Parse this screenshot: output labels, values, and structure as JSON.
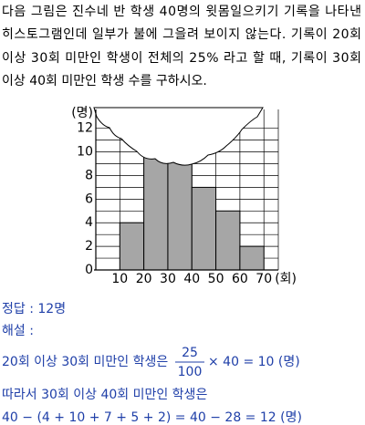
{
  "problem": {
    "lines": [
      "다음 그림은 진수네 반 학생 40명의 윗몸일으키기 기록을 나타낸",
      "히스토그램인데 일부가 불에 그을려 보이지 않는다. 기록이 20회",
      "이상 30회 미만인 학생이 전체의 25% 라고 할 때, 기록이 30회",
      "이상 40회 미만인 학생 수를 구하시오."
    ]
  },
  "chart_data": {
    "type": "histogram",
    "bins": [
      10,
      20,
      30,
      40,
      50,
      60,
      70
    ],
    "values": [
      4,
      null,
      null,
      7,
      5,
      2
    ],
    "color": "#a6a6a6",
    "xlim": [
      0,
      76
    ],
    "xticks": [
      10,
      20,
      30,
      40,
      50,
      60,
      70
    ],
    "ylim": [
      0,
      13.6
    ],
    "yticks": [
      0,
      2,
      4,
      6,
      8,
      10,
      12
    ],
    "y_unit": "(명)",
    "x_unit": "(회)",
    "grid": true
  },
  "solution": {
    "answer": "정답 : 12명",
    "label": "해설 :",
    "line1_text": "20회 이상 30회 미만인 학생은",
    "fraction_num": "25",
    "fraction_den": "100",
    "line1_rest": "× 40 = 10 (명)",
    "line2": "따라서 30회 이상 40회 미만인 학생은",
    "line3": "40 − (4 + 10 + 7 + 5 + 2) = 40 − 28 = 12 (명)"
  }
}
